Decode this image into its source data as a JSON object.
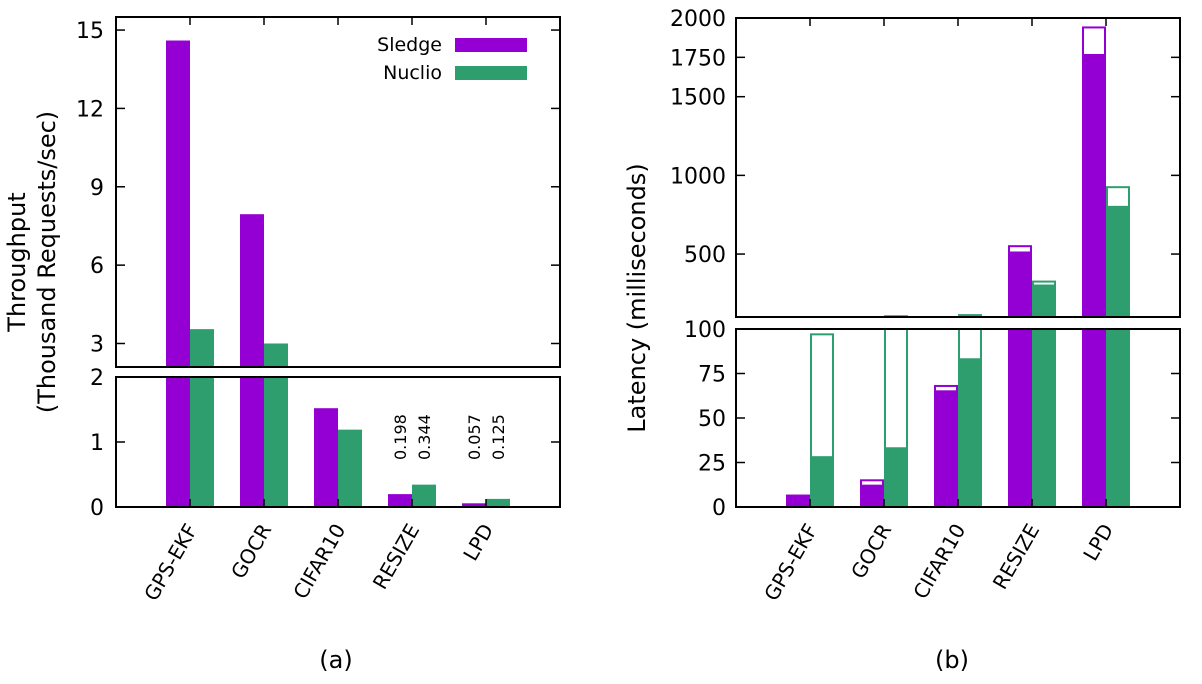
{
  "chart_data": [
    {
      "id": "a",
      "type": "bar",
      "caption": "(a)",
      "ylabel_lines": [
        "Throughput",
        "(Thousand Requests/sec)"
      ],
      "categories": [
        "GPS-EKF",
        "GOCR",
        "CIFAR10",
        "RESIZE",
        "LPD"
      ],
      "legend": {
        "placement": "top-right"
      },
      "series": [
        {
          "name": "Sledge",
          "color": "#9400d3",
          "values": [
            14.6,
            7.95,
            1.52,
            0.198,
            0.057
          ]
        },
        {
          "name": "Nuclio",
          "color": "#2e9e6e",
          "values": [
            3.55,
            3.0,
            1.19,
            0.344,
            0.125
          ]
        }
      ],
      "broken_axis": {
        "upper": {
          "ylim": [
            2.1,
            15.5
          ],
          "ticks": [
            3,
            6,
            9,
            12,
            15
          ]
        },
        "lower": {
          "ylim": [
            0,
            2
          ],
          "ticks": [
            0,
            1,
            2
          ]
        }
      },
      "data_labels": [
        {
          "category": "RESIZE",
          "series": "Sledge",
          "text": "0.198"
        },
        {
          "category": "RESIZE",
          "series": "Nuclio",
          "text": "0.344"
        },
        {
          "category": "LPD",
          "series": "Sledge",
          "text": "0.057"
        },
        {
          "category": "LPD",
          "series": "Nuclio",
          "text": "0.125"
        }
      ]
    },
    {
      "id": "b",
      "type": "bar",
      "caption": "(b)",
      "ylabel_lines": [
        "Latency (milliseconds)"
      ],
      "categories": [
        "GPS-EKF",
        "GOCR",
        "CIFAR10",
        "RESIZE",
        "LPD"
      ],
      "series": [
        {
          "name": "Sledge",
          "color": "#9400d3",
          "values": [
            7,
            12,
            65,
            510,
            1765
          ],
          "upper_values": [
            7,
            15,
            68,
            550,
            1940
          ]
        },
        {
          "name": "Nuclio",
          "color": "#2e9e6e",
          "values": [
            28,
            33,
            83,
            300,
            800
          ],
          "upper_values": [
            97,
            105,
            112,
            325,
            925
          ]
        }
      ],
      "broken_axis": {
        "upper": {
          "ylim": [
            100,
            2000
          ],
          "ticks": [
            100,
            500,
            1000,
            1500,
            1750,
            2000
          ]
        },
        "lower": {
          "ylim": [
            0,
            100
          ],
          "ticks": [
            0,
            25,
            50,
            75,
            100
          ]
        }
      }
    }
  ]
}
